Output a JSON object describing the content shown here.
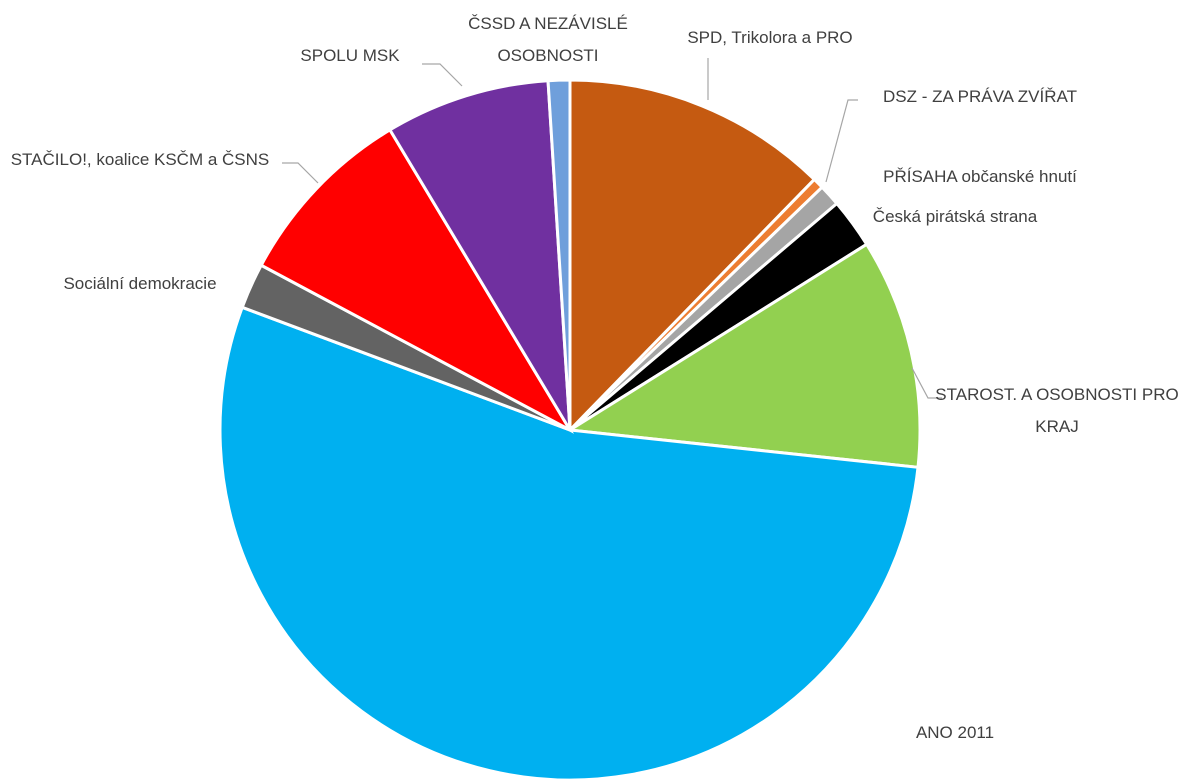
{
  "chart_data": {
    "type": "pie",
    "categories": [
      "SPD, Trikolora a PRO",
      "DSZ - ZA PRÁVA ZVÍŘAT",
      "PŘÍSAHA občanské hnutí",
      "Česká pirátská strana",
      "STAROST. A OSOBNOSTI PRO KRAJ",
      "ANO 2011",
      "Sociální demokracie",
      "STAČILO!, koalice KSČM a ČSNS",
      "SPOLU MSK",
      "ČSSD A NEZÁVISLÉ OSOBNOSTI"
    ],
    "values": [
      12.3,
      0.5,
      1.0,
      2.3,
      10.6,
      54.0,
      2.1,
      8.6,
      7.6,
      1.0
    ],
    "colors": [
      "#c55a11",
      "#ed7d31",
      "#a5a5a5",
      "#000000",
      "#92d050",
      "#00b0f0",
      "#636363",
      "#ff0000",
      "#7030a0",
      "#6f9fdb"
    ]
  }
}
